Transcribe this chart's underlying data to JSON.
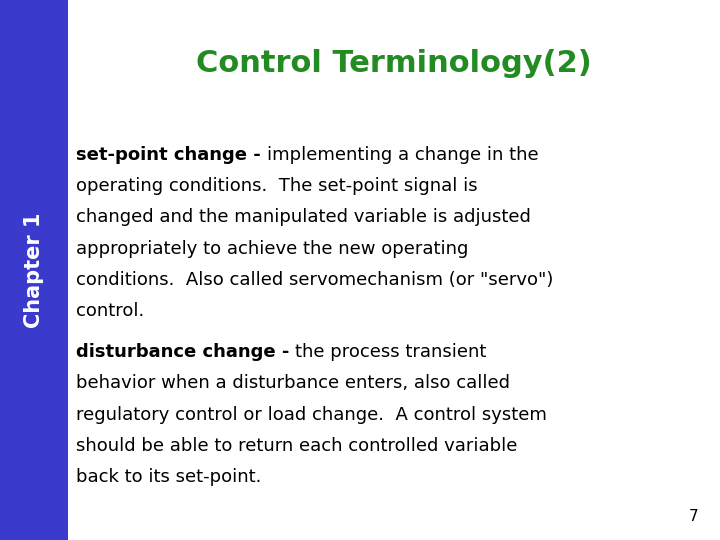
{
  "title": "Control Terminology(2)",
  "title_color": "#228B22",
  "title_fontsize": 22,
  "sidebar_color": "#3A3ACC",
  "sidebar_text": "Chapter 1",
  "sidebar_text_color": "#FFFFFF",
  "sidebar_fontsize": 15,
  "background_color": "#FFFFFF",
  "page_number": "7",
  "body_fontsize": 13,
  "text_color": "#000000",
  "para1_bold": "set-point change - ",
  "para1_lines": [
    "implementing a change in the",
    "operating conditions.  The set-point signal is",
    "changed and the manipulated variable is adjusted",
    "appropriately to achieve the new operating",
    "conditions.  Also called servomechanism (or \"servo\")",
    "control."
  ],
  "para2_bold": "disturbance change - ",
  "para2_lines": [
    "the process transient",
    "behavior when a disturbance enters, also called",
    "regulatory control or load change.  A control system",
    "should be able to return each controlled variable",
    "back to its set-point."
  ]
}
